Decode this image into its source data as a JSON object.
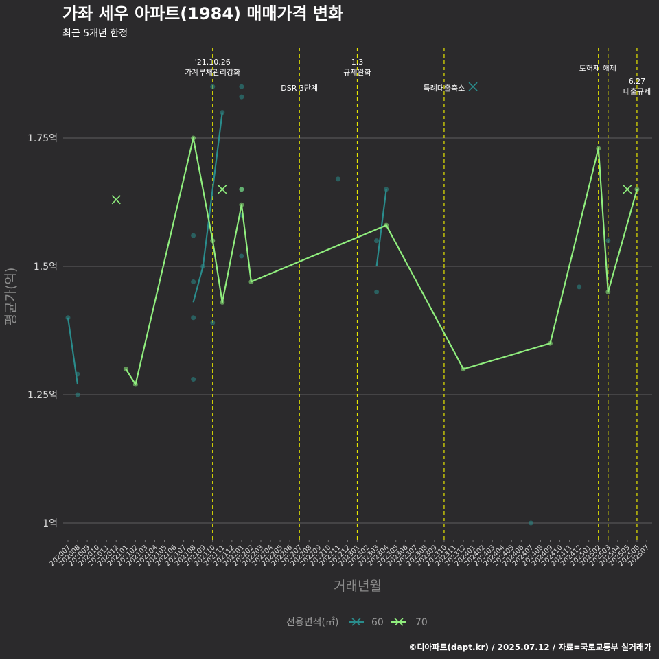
{
  "chart_data": {
    "type": "line",
    "title": "가좌 세우 아파트(1984) 매매가격 변화",
    "subtitle": "최근 5개년 한정",
    "xlabel": "거래년월",
    "ylabel": "평균가(억)",
    "caption": "©디아파트(dapt.kr) / 2025.07.12 / 자료=국토교통부 실거래가",
    "ylim": [
      0.94,
      1.99
    ],
    "y_ticks": [
      {
        "value": 1.0,
        "label": "1억"
      },
      {
        "value": 1.25,
        "label": "1.25억"
      },
      {
        "value": 1.5,
        "label": "1.5억"
      },
      {
        "value": 1.75,
        "label": "1.75억"
      }
    ],
    "x_categories": [
      "202007",
      "202008",
      "202009",
      "202010",
      "202011",
      "202012",
      "202101",
      "202102",
      "202103",
      "202104",
      "202105",
      "202106",
      "202107",
      "202108",
      "202109",
      "202110",
      "202111",
      "202112",
      "202201",
      "202202",
      "202203",
      "202204",
      "202205",
      "202206",
      "202207",
      "202208",
      "202209",
      "202210",
      "202211",
      "202212",
      "202301",
      "202302",
      "202303",
      "202304",
      "202305",
      "202306",
      "202307",
      "202308",
      "202309",
      "202310",
      "202311",
      "202312",
      "202401",
      "202402",
      "202403",
      "202404",
      "202405",
      "202406",
      "202407",
      "202408",
      "202409",
      "202410",
      "202411",
      "202412",
      "202501",
      "202502",
      "202503",
      "202504",
      "202505",
      "202506",
      "202507"
    ],
    "grid": true,
    "legend": {
      "title": "전용면적(㎡)",
      "position": "bottom",
      "entries": [
        "60",
        "70"
      ]
    },
    "series": [
      {
        "name": "60",
        "color": "#2a8c8c",
        "lines": [
          [
            [
              "202007",
              1.4
            ],
            [
              "202008",
              1.27
            ]
          ],
          [
            [
              "202108",
              1.43
            ],
            [
              "202109",
              1.5
            ],
            [
              "202111",
              1.8
            ]
          ],
          [
            [
              "202303",
              1.5
            ],
            [
              "202304",
              1.65
            ]
          ]
        ],
        "points": [
          [
            "202007",
            1.4
          ],
          [
            "202008",
            1.29
          ],
          [
            "202008",
            1.25
          ],
          [
            "202108",
            1.56
          ],
          [
            "202108",
            1.47
          ],
          [
            "202108",
            1.4
          ],
          [
            "202108",
            1.28
          ],
          [
            "202109",
            1.5
          ],
          [
            "202110",
            1.85
          ],
          [
            "202110",
            1.39
          ],
          [
            "202111",
            1.8
          ],
          [
            "202201",
            1.85
          ],
          [
            "202201",
            1.83
          ],
          [
            "202201",
            1.65
          ],
          [
            "202201",
            1.6
          ],
          [
            "202201",
            1.52
          ],
          [
            "202211",
            1.67
          ],
          [
            "202303",
            1.55
          ],
          [
            "202303",
            1.45
          ],
          [
            "202304",
            1.65
          ],
          [
            "202407",
            1.0
          ],
          [
            "202412",
            1.46
          ],
          [
            "202503",
            1.55
          ]
        ],
        "single_markers": [
          [
            "202401",
            1.85
          ]
        ]
      },
      {
        "name": "70",
        "color": "#90ee7e",
        "lines": [
          [
            [
              "202012",
              1.63
            ]
          ],
          [
            [
              "202101",
              1.3
            ],
            [
              "202102",
              1.27
            ],
            [
              "202108",
              1.75
            ],
            [
              "202110",
              1.55
            ],
            [
              "202111",
              1.43
            ],
            [
              "202201",
              1.62
            ],
            [
              "202202",
              1.47
            ],
            [
              "202304",
              1.58
            ],
            [
              "202312",
              1.3
            ],
            [
              "202409",
              1.35
            ],
            [
              "202502",
              1.73
            ],
            [
              "202503",
              1.45
            ],
            [
              "202506",
              1.65
            ]
          ]
        ],
        "points": [
          [
            "202101",
            1.3
          ],
          [
            "202102",
            1.27
          ],
          [
            "202108",
            1.75
          ],
          [
            "202110",
            1.55
          ],
          [
            "202111",
            1.43
          ],
          [
            "202201",
            1.65
          ],
          [
            "202201",
            1.62
          ],
          [
            "202202",
            1.47
          ],
          [
            "202304",
            1.58
          ],
          [
            "202312",
            1.3
          ],
          [
            "202409",
            1.35
          ],
          [
            "202502",
            1.73
          ],
          [
            "202503",
            1.45
          ],
          [
            "202506",
            1.65
          ]
        ],
        "single_markers": [
          [
            "202012",
            1.63
          ],
          [
            "202111",
            1.65
          ],
          [
            "202505",
            1.65
          ]
        ]
      }
    ],
    "events": [
      {
        "x": "202110",
        "lines": [
          "'21.10.26",
          "가계부채관리강화"
        ],
        "anchor": "middle",
        "row": "top"
      },
      {
        "x": "202207",
        "lines": [
          "DSR 3단계"
        ],
        "anchor": "middle",
        "row": "mid"
      },
      {
        "x": "202301",
        "lines": [
          "1.3",
          "규제완화"
        ],
        "anchor": "middle",
        "row": "top"
      },
      {
        "x": "202310",
        "lines": [
          "특례대출축소"
        ],
        "anchor": "middle",
        "row": "mid"
      },
      {
        "x": "202502",
        "lines": [
          "토허제 해제"
        ],
        "anchor": "start",
        "row": "upper"
      },
      {
        "x": "202503",
        "lines": [],
        "anchor": "middle",
        "row": "none"
      },
      {
        "x": "202506",
        "lines": [
          "6.27",
          "대출규제"
        ],
        "anchor": "middle",
        "row": "right"
      }
    ]
  }
}
